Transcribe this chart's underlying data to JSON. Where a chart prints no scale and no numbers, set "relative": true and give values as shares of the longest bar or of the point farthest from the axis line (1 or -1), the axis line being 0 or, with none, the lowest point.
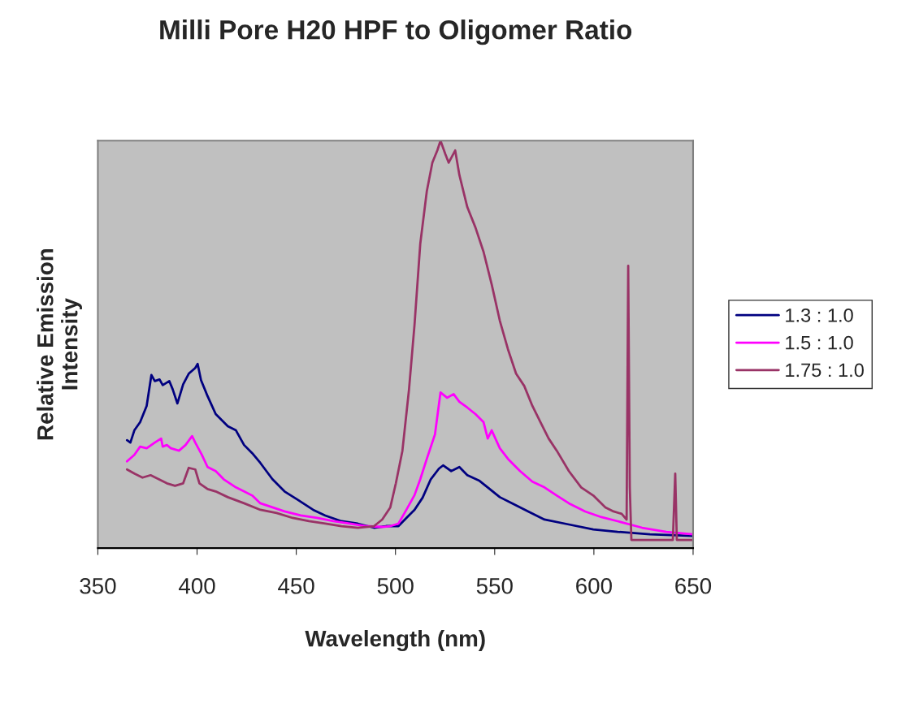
{
  "chart_data": {
    "type": "line",
    "title": "Milli Pore H20 HPF to Oligomer Ratio",
    "xlabel": "Wavelength (nm)",
    "ylabel": "Relative Emission\nIntensity",
    "relative": true,
    "xlim": [
      350,
      650
    ],
    "xticks": [
      350,
      400,
      450,
      500,
      550,
      600,
      650
    ],
    "legend": "right",
    "marker": "none",
    "line_style": "solid",
    "series": [
      {
        "name": "1.3 : 1.0",
        "color": "#000080",
        "x": [
          364.7,
          366.4,
          368.4,
          371.3,
          374.6,
          377.0,
          378.7,
          381.1,
          382.7,
          386.0,
          387.7,
          390.1,
          393.0,
          395.8,
          399.1,
          400.3,
          402.0,
          405.3,
          409.4,
          415.5,
          419.6,
          423.7,
          427.8,
          431.9,
          438.0,
          444.1,
          450.3,
          458.5,
          464.6,
          472.8,
          481.0,
          489.2,
          495.3,
          501.5,
          505.5,
          509.6,
          513.7,
          517.8,
          521.9,
          524.0,
          528.1,
          532.2,
          536.2,
          542.4,
          546.5,
          552.6,
          558.8,
          566.9,
          575.1,
          587.4,
          599.7,
          612.0,
          628.3,
          650.0
        ],
        "values": [
          0.265,
          0.259,
          0.289,
          0.309,
          0.349,
          0.425,
          0.41,
          0.414,
          0.4,
          0.41,
          0.39,
          0.355,
          0.402,
          0.428,
          0.442,
          0.452,
          0.412,
          0.373,
          0.329,
          0.299,
          0.289,
          0.253,
          0.233,
          0.209,
          0.169,
          0.139,
          0.12,
          0.094,
          0.08,
          0.066,
          0.06,
          0.05,
          0.054,
          0.054,
          0.074,
          0.094,
          0.124,
          0.169,
          0.195,
          0.203,
          0.189,
          0.199,
          0.179,
          0.165,
          0.149,
          0.125,
          0.11,
          0.09,
          0.07,
          0.058,
          0.046,
          0.04,
          0.034,
          0.03
        ]
      },
      {
        "name": "1.5 : 1.0",
        "color": "#ff00ff",
        "x": [
          364.7,
          368.4,
          371.3,
          374.6,
          378.7,
          381.9,
          382.7,
          384.8,
          386.8,
          390.9,
          394.2,
          397.5,
          399.1,
          402.4,
          405.3,
          409.4,
          413.4,
          419.6,
          423.7,
          427.8,
          431.9,
          438.0,
          444.1,
          452.3,
          460.5,
          468.7,
          476.9,
          485.1,
          493.3,
          497.4,
          501.5,
          505.5,
          509.6,
          512.5,
          515.8,
          519.9,
          522.7,
          526.0,
          529.3,
          532.2,
          536.2,
          540.3,
          544.4,
          546.5,
          548.5,
          552.6,
          556.7,
          562.8,
          569.0,
          575.1,
          581.3,
          587.4,
          595.6,
          603.8,
          612.0,
          624.3,
          636.5,
          650.0
        ],
        "values": [
          0.213,
          0.229,
          0.249,
          0.245,
          0.259,
          0.269,
          0.249,
          0.253,
          0.245,
          0.239,
          0.253,
          0.275,
          0.259,
          0.229,
          0.199,
          0.189,
          0.169,
          0.149,
          0.139,
          0.129,
          0.11,
          0.1,
          0.09,
          0.08,
          0.074,
          0.066,
          0.06,
          0.054,
          0.052,
          0.054,
          0.06,
          0.094,
          0.13,
          0.169,
          0.219,
          0.279,
          0.382,
          0.369,
          0.378,
          0.359,
          0.345,
          0.329,
          0.309,
          0.269,
          0.289,
          0.245,
          0.219,
          0.189,
          0.163,
          0.149,
          0.129,
          0.11,
          0.09,
          0.076,
          0.066,
          0.05,
          0.04,
          0.034
        ]
      },
      {
        "name": "1.75 : 1.0",
        "color": "#993366",
        "x": [
          364.7,
          368.4,
          372.5,
          376.6,
          380.7,
          384.8,
          388.9,
          393.0,
          395.8,
          399.1,
          401.2,
          405.3,
          409.4,
          415.5,
          423.7,
          431.9,
          440.1,
          448.2,
          456.4,
          464.6,
          472.8,
          481.0,
          489.2,
          493.3,
          497.4,
          500.2,
          503.5,
          506.8,
          509.6,
          512.5,
          515.8,
          518.6,
          521.1,
          522.7,
          525.2,
          526.8,
          530.1,
          532.2,
          536.2,
          540.3,
          544.4,
          548.5,
          552.6,
          556.7,
          560.8,
          564.9,
          569.0,
          573.1,
          577.2,
          581.3,
          587.4,
          593.6,
          599.7,
          605.8,
          609.9,
          614.0,
          616.5,
          617.3,
          618.1,
          618.9,
          628.3,
          639.8,
          641.0,
          641.8,
          650.0
        ],
        "values": [
          0.193,
          0.183,
          0.173,
          0.179,
          0.169,
          0.159,
          0.153,
          0.159,
          0.197,
          0.193,
          0.159,
          0.145,
          0.139,
          0.125,
          0.11,
          0.094,
          0.086,
          0.074,
          0.066,
          0.06,
          0.054,
          0.05,
          0.054,
          0.07,
          0.1,
          0.159,
          0.239,
          0.388,
          0.548,
          0.747,
          0.876,
          0.946,
          0.976,
          1.0,
          0.966,
          0.946,
          0.976,
          0.916,
          0.837,
          0.787,
          0.727,
          0.647,
          0.558,
          0.488,
          0.428,
          0.398,
          0.349,
          0.309,
          0.269,
          0.239,
          0.189,
          0.149,
          0.129,
          0.1,
          0.09,
          0.084,
          0.07,
          0.693,
          0.149,
          0.02,
          0.02,
          0.02,
          0.183,
          0.02,
          0.02
        ]
      }
    ]
  }
}
